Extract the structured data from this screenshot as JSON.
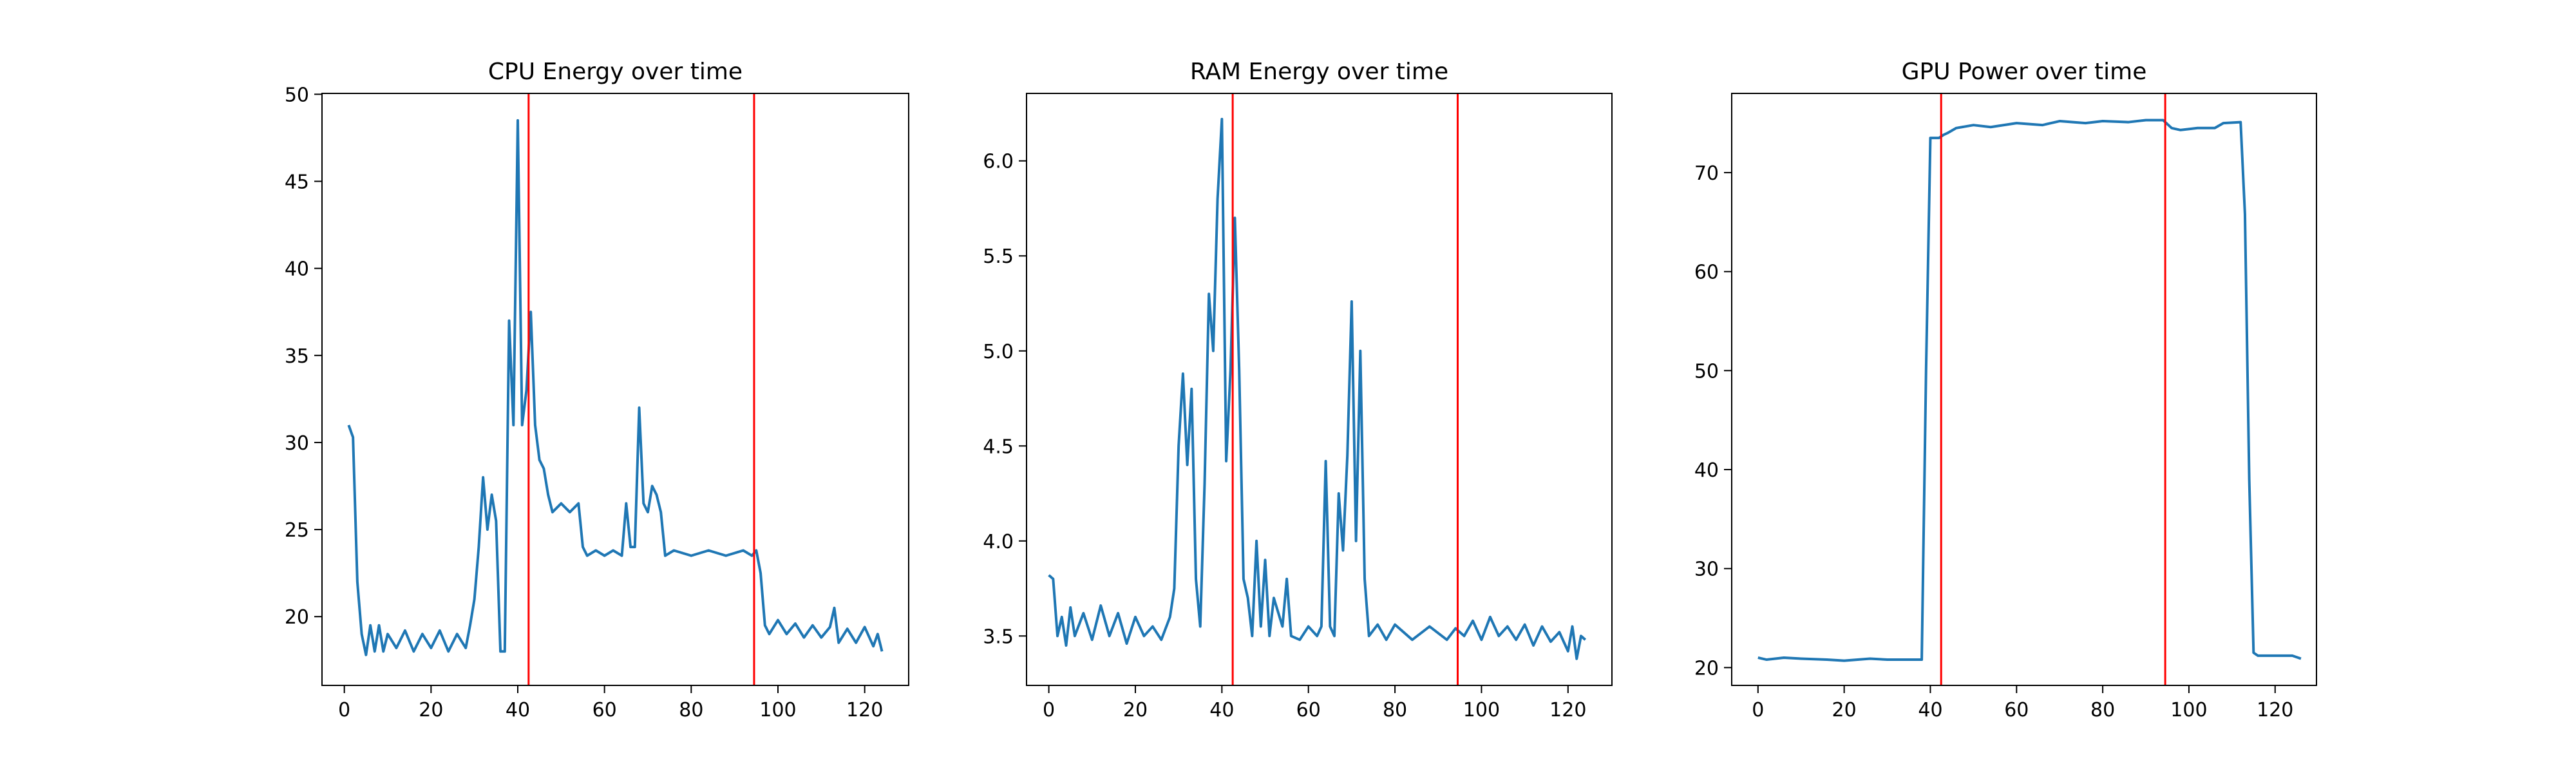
{
  "chart_data": [
    {
      "type": "line",
      "title": "CPU Energy over time",
      "color": "#1f77b4",
      "x": [
        1,
        2,
        3,
        4,
        5,
        6,
        7,
        8,
        9,
        10,
        12,
        14,
        16,
        18,
        20,
        22,
        24,
        26,
        28,
        29,
        30,
        31,
        32,
        33,
        34,
        35,
        36,
        37,
        38,
        39,
        40,
        41,
        42,
        43,
        44,
        45,
        46,
        47,
        48,
        50,
        52,
        54,
        55,
        56,
        58,
        60,
        62,
        64,
        65,
        66,
        67,
        68,
        69,
        70,
        71,
        72,
        73,
        74,
        76,
        80,
        84,
        88,
        92,
        94,
        95,
        96,
        97,
        98,
        100,
        102,
        104,
        106,
        108,
        110,
        112,
        113,
        114,
        116,
        118,
        120,
        122,
        123,
        124
      ],
      "values": [
        31,
        30.3,
        22,
        19,
        17.8,
        19.5,
        18,
        19.5,
        18,
        19,
        18.2,
        19.2,
        18,
        19,
        18.2,
        19.2,
        18,
        19,
        18.2,
        19.5,
        21,
        24,
        28,
        25,
        27,
        25.5,
        18,
        18,
        37,
        31,
        48.5,
        31,
        33,
        37.5,
        31,
        29,
        28.5,
        27,
        26,
        26.5,
        26,
        26.5,
        24,
        23.5,
        23.8,
        23.5,
        23.8,
        23.5,
        26.5,
        24,
        24,
        32,
        26.5,
        26,
        27.5,
        27,
        26,
        23.5,
        23.8,
        23.5,
        23.8,
        23.5,
        23.8,
        23.5,
        23.8,
        22.5,
        19.5,
        19,
        19.8,
        19,
        19.6,
        18.8,
        19.5,
        18.8,
        19.4,
        20.5,
        18.5,
        19.3,
        18.5,
        19.4,
        18.3,
        19,
        18
      ],
      "xlim": [
        -5.15,
        130.15
      ],
      "ylim": [
        16.05,
        50.05
      ],
      "xticks": [
        0,
        20,
        40,
        60,
        80,
        100,
        120
      ],
      "yticks": [
        20,
        25,
        30,
        35,
        40,
        45,
        50
      ],
      "vertical_lines": [
        42.5,
        94.5
      ],
      "vertical_line_color": "#ff0000"
    },
    {
      "type": "line",
      "title": "RAM Energy over time",
      "color": "#1f77b4",
      "x": [
        0,
        1,
        2,
        3,
        4,
        5,
        6,
        8,
        10,
        12,
        14,
        16,
        18,
        20,
        22,
        24,
        26,
        28,
        29,
        30,
        31,
        32,
        33,
        34,
        35,
        36,
        37,
        38,
        39,
        40,
        41,
        42,
        43,
        44,
        45,
        46,
        47,
        48,
        49,
        50,
        51,
        52,
        54,
        55,
        56,
        58,
        60,
        62,
        63,
        64,
        65,
        66,
        67,
        68,
        69,
        70,
        71,
        72,
        73,
        74,
        76,
        78,
        80,
        84,
        88,
        92,
        94,
        96,
        98,
        100,
        102,
        104,
        106,
        108,
        110,
        112,
        114,
        116,
        118,
        120,
        121,
        122,
        123,
        124
      ],
      "values": [
        3.82,
        3.8,
        3.5,
        3.6,
        3.45,
        3.65,
        3.5,
        3.62,
        3.48,
        3.66,
        3.5,
        3.62,
        3.46,
        3.6,
        3.5,
        3.55,
        3.48,
        3.6,
        3.75,
        4.5,
        4.88,
        4.4,
        4.8,
        3.8,
        3.55,
        4.3,
        5.3,
        5.0,
        5.8,
        6.22,
        4.42,
        4.9,
        5.7,
        4.9,
        3.8,
        3.7,
        3.5,
        4.0,
        3.55,
        3.9,
        3.5,
        3.7,
        3.55,
        3.8,
        3.5,
        3.48,
        3.55,
        3.5,
        3.55,
        4.42,
        3.55,
        3.5,
        4.25,
        3.95,
        4.45,
        5.26,
        4.0,
        5.0,
        3.8,
        3.5,
        3.56,
        3.48,
        3.56,
        3.48,
        3.55,
        3.48,
        3.54,
        3.5,
        3.58,
        3.48,
        3.6,
        3.5,
        3.55,
        3.48,
        3.56,
        3.45,
        3.55,
        3.47,
        3.52,
        3.42,
        3.55,
        3.38,
        3.5,
        3.48
      ],
      "xlim": [
        -5.15,
        130.15
      ],
      "ylim": [
        3.24,
        6.355
      ],
      "xticks": [
        0,
        20,
        40,
        60,
        80,
        100,
        120
      ],
      "yticks": [
        3.5,
        {
          "value": 4,
          "label": "4.0"
        },
        4.5,
        {
          "value": 5,
          "label": "5.0"
        },
        5.5,
        {
          "value": 6,
          "label": "6.0"
        }
      ],
      "vertical_lines": [
        42.5,
        94.5
      ],
      "vertical_line_color": "#ff0000"
    },
    {
      "type": "line",
      "title": "GPU Power over time",
      "color": "#1f77b4",
      "x": [
        0,
        2,
        6,
        10,
        16,
        20,
        26,
        30,
        36,
        38,
        39,
        40,
        42,
        43,
        44,
        46,
        50,
        54,
        60,
        66,
        70,
        76,
        80,
        86,
        90,
        94,
        96,
        98,
        102,
        106,
        108,
        112,
        113,
        114,
        115,
        116,
        120,
        124,
        126
      ],
      "values": [
        21,
        20.8,
        21,
        20.9,
        20.8,
        20.7,
        20.9,
        20.8,
        20.8,
        20.8,
        50,
        73.5,
        73.5,
        73.8,
        74,
        74.5,
        74.8,
        74.6,
        75,
        74.8,
        75.2,
        75,
        75.2,
        75.1,
        75.3,
        75.3,
        74.5,
        74.3,
        74.5,
        74.5,
        75,
        75.1,
        65.8,
        39,
        21.5,
        21.2,
        21.2,
        21.2,
        20.9
      ],
      "xlim": [
        -6.1,
        129.6
      ],
      "ylim": [
        18.2,
        78.0
      ],
      "xticks": [
        0,
        20,
        40,
        60,
        80,
        100,
        120
      ],
      "yticks": [
        20,
        30,
        40,
        50,
        60,
        70
      ],
      "vertical_lines": [
        42.5,
        94.5
      ],
      "vertical_line_color": "#ff0000"
    }
  ]
}
